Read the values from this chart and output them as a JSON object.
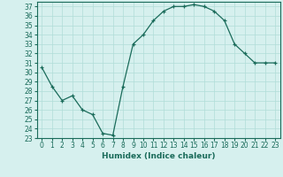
{
  "x": [
    0,
    1,
    2,
    3,
    4,
    5,
    6,
    7,
    8,
    9,
    10,
    11,
    12,
    13,
    14,
    15,
    16,
    17,
    18,
    19,
    20,
    21,
    22,
    23
  ],
  "y": [
    30.5,
    28.5,
    27.0,
    27.5,
    26.0,
    25.5,
    23.5,
    23.3,
    28.5,
    33.0,
    34.0,
    35.5,
    36.5,
    37.0,
    37.0,
    37.2,
    37.0,
    36.5,
    35.5,
    33.0,
    32.0,
    31.0,
    31.0,
    31.0
  ],
  "xlabel": "Humidex (Indice chaleur)",
  "ylim": [
    23,
    37.5
  ],
  "xlim": [
    -0.5,
    23.5
  ],
  "yticks": [
    23,
    24,
    25,
    26,
    27,
    28,
    29,
    30,
    31,
    32,
    33,
    34,
    35,
    36,
    37
  ],
  "xticks": [
    0,
    1,
    2,
    3,
    4,
    5,
    6,
    7,
    8,
    9,
    10,
    11,
    12,
    13,
    14,
    15,
    16,
    17,
    18,
    19,
    20,
    21,
    22,
    23
  ],
  "line_color": "#1a6b5a",
  "marker": "+",
  "background_color": "#d6f0ee",
  "grid_color": "#b0ddd8",
  "tick_label_fontsize": 5.5,
  "xlabel_fontsize": 6.5
}
